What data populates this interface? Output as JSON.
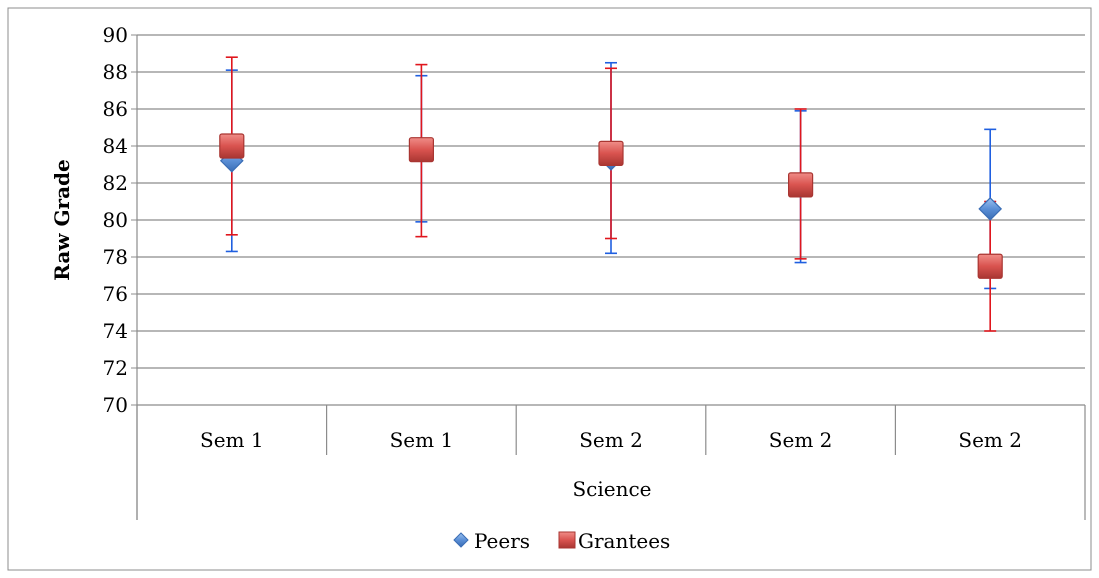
{
  "chart_data": {
    "type": "scatter",
    "title": "",
    "ylabel": "Raw Grade",
    "ylim": [
      70,
      90
    ],
    "ytick_step": 2,
    "grid": true,
    "legend_position": "bottom",
    "group_label": "Science",
    "categories": [
      "Sem 1",
      "Sem 1",
      "Sem 2",
      "Sem 2",
      "Sem 2"
    ],
    "series": [
      {
        "name": "Peers",
        "marker": "diamond",
        "color": "#4f81bd",
        "error_color": "#1f5fe0",
        "values": [
          83.2,
          83.8,
          83.3,
          81.8,
          80.6
        ],
        "lower": [
          78.3,
          79.9,
          78.2,
          77.7,
          76.3
        ],
        "upper": [
          88.1,
          87.8,
          88.5,
          85.9,
          84.9
        ]
      },
      {
        "name": "Grantees",
        "marker": "square",
        "color": "#c0504d",
        "error_color": "#e0161d",
        "values": [
          84.0,
          83.8,
          83.6,
          81.9,
          77.5
        ],
        "lower": [
          79.2,
          79.1,
          79.0,
          77.9,
          74.0
        ],
        "upper": [
          88.8,
          88.4,
          88.2,
          86.0,
          81.0
        ]
      }
    ]
  }
}
